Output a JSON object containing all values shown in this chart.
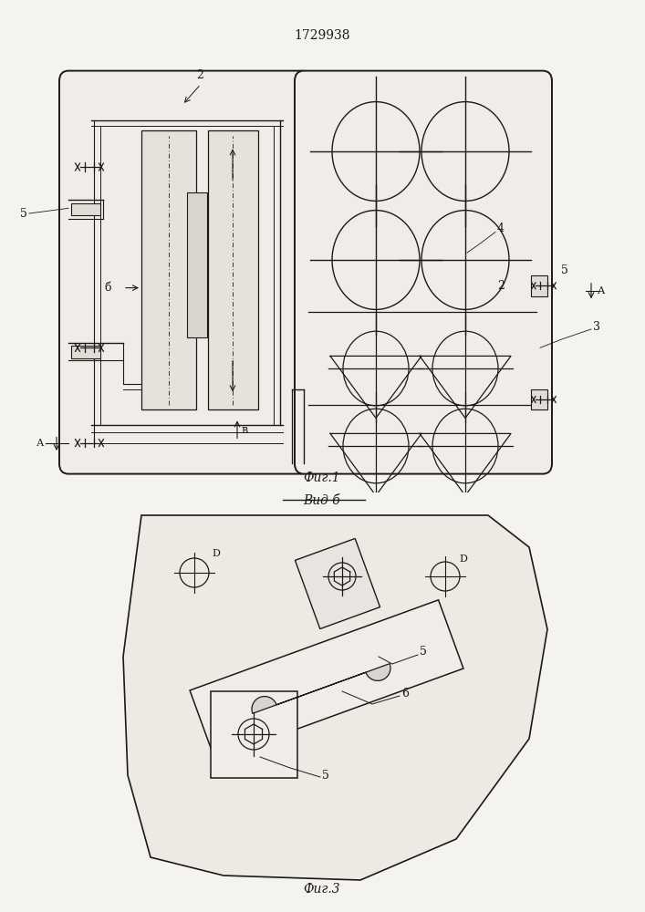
{
  "title": "1729938",
  "fig1_label": "Фиг.1",
  "fig3_label": "Фиг.3",
  "vid_label": "Вид б",
  "bg_color": "#f5f3ef",
  "line_color": "#1a1a1a"
}
